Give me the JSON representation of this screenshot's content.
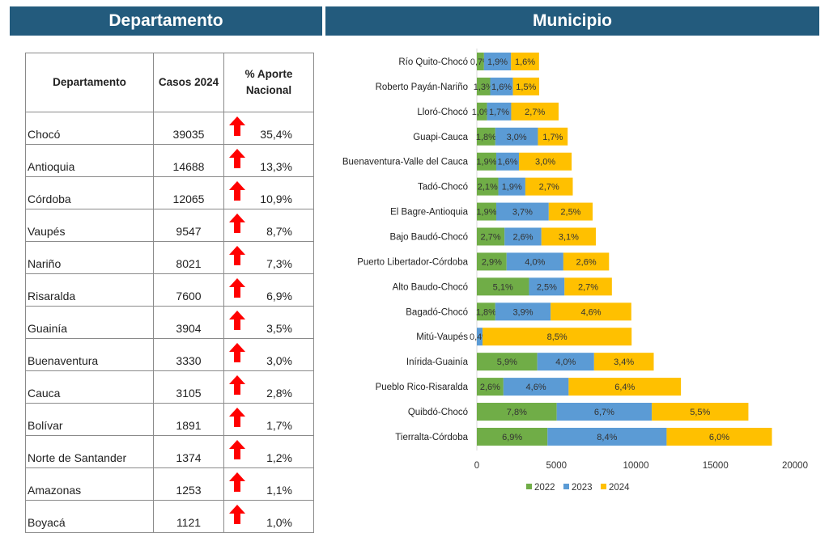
{
  "headers": {
    "left": "Departamento",
    "right": "Municipio"
  },
  "table": {
    "columns": [
      "Departamento",
      "Casos 2024",
      "% Aporte Nacional"
    ],
    "trend_icon": "red-up-arrow",
    "rows": [
      {
        "name": "Chocó",
        "cases": "39035",
        "pct": "35,4%"
      },
      {
        "name": "Antioquia",
        "cases": "14688",
        "pct": "13,3%"
      },
      {
        "name": "Córdoba",
        "cases": "12065",
        "pct": "10,9%"
      },
      {
        "name": "Vaupés",
        "cases": "9547",
        "pct": "8,7%"
      },
      {
        "name": "Nariño",
        "cases": "8021",
        "pct": "7,3%"
      },
      {
        "name": "Risaralda",
        "cases": "7600",
        "pct": "6,9%"
      },
      {
        "name": "Guainía",
        "cases": "3904",
        "pct": "3,5%"
      },
      {
        "name": "Buenaventura",
        "cases": "3330",
        "pct": "3,0%"
      },
      {
        "name": "Cauca",
        "cases": "3105",
        "pct": "2,8%"
      },
      {
        "name": "Bolívar",
        "cases": "1891",
        "pct": "1,7%"
      },
      {
        "name": "Norte de Santander",
        "cases": "1374",
        "pct": "1,2%"
      },
      {
        "name": "Amazonas",
        "cases": "1253",
        "pct": "1,1%"
      },
      {
        "name": "Boyacá",
        "cases": "1121",
        "pct": "1,0%"
      }
    ]
  },
  "chart_data": {
    "type": "bar",
    "orientation": "horizontal",
    "stacked": true,
    "categories": [
      "Río Quito-Chocó",
      "Roberto Payán-Nariño",
      "Lloró-Chocó",
      "Guapi-Cauca",
      "Buenaventura-Valle del Cauca",
      "Tadó-Chocó",
      "El Bagre-Antioquia",
      "Bajo Baudó-Chocó",
      "Puerto Libertador-Córdoba",
      "Alto Baudo-Chocó",
      "Bagadó-Chocó",
      "Mitú-Vaupés",
      "Inírida-Guainía",
      "Pueblo Rico-Risaralda",
      "Quibdó-Chocó",
      "Tierralta-Córdoba"
    ],
    "series": [
      {
        "name": "2022",
        "color": "#70ad47",
        "values": [
          450,
          840,
          640,
          1160,
          1220,
          1350,
          1220,
          1740,
          1870,
          3280,
          1160,
          0,
          3800,
          1670,
          5020,
          4440
        ],
        "labels": [
          "0,7%",
          "1,3%",
          "1,0%",
          "1,8%",
          "1,9%",
          "2,1%",
          "1,9%",
          "2,7%",
          "2,9%",
          "5,1%",
          "1,8%",
          "",
          "5,9%",
          "2,6%",
          "7,8%",
          "6,9%"
        ]
      },
      {
        "name": "2023",
        "color": "#5b9bd5",
        "values": [
          1700,
          1430,
          1520,
          2680,
          1430,
          1700,
          3300,
          2320,
          3570,
          2230,
          3480,
          360,
          3570,
          4100,
          5980,
          7490
        ],
        "labels": [
          "1,9%",
          "1,6%",
          "1,7%",
          "3,0%",
          "1,6%",
          "1,9%",
          "3,7%",
          "2,6%",
          "4,0%",
          "2,5%",
          "3,9%",
          "0,4%",
          "4,0%",
          "4,6%",
          "6,7%",
          "8,4%"
        ]
      },
      {
        "name": "2024",
        "color": "#ffc000",
        "values": [
          1760,
          1650,
          2980,
          1870,
          3310,
          2980,
          2760,
          3420,
          2870,
          2980,
          5070,
          9370,
          3750,
          7060,
          6070,
          6620
        ],
        "labels": [
          "1,6%",
          "1,5%",
          "2,7%",
          "1,7%",
          "3,0%",
          "2,7%",
          "2,5%",
          "3,1%",
          "2,6%",
          "2,7%",
          "4,6%",
          "8,5%",
          "3,4%",
          "6,4%",
          "5,5%",
          "6,0%"
        ]
      }
    ],
    "xlim": [
      0,
      20000
    ],
    "xticks": [
      "0",
      "5000",
      "10000",
      "15000",
      "20000"
    ],
    "grid": false,
    "legend": "bottom"
  },
  "colors": {
    "header": "#235b7d",
    "arrow": "#ff0000"
  }
}
